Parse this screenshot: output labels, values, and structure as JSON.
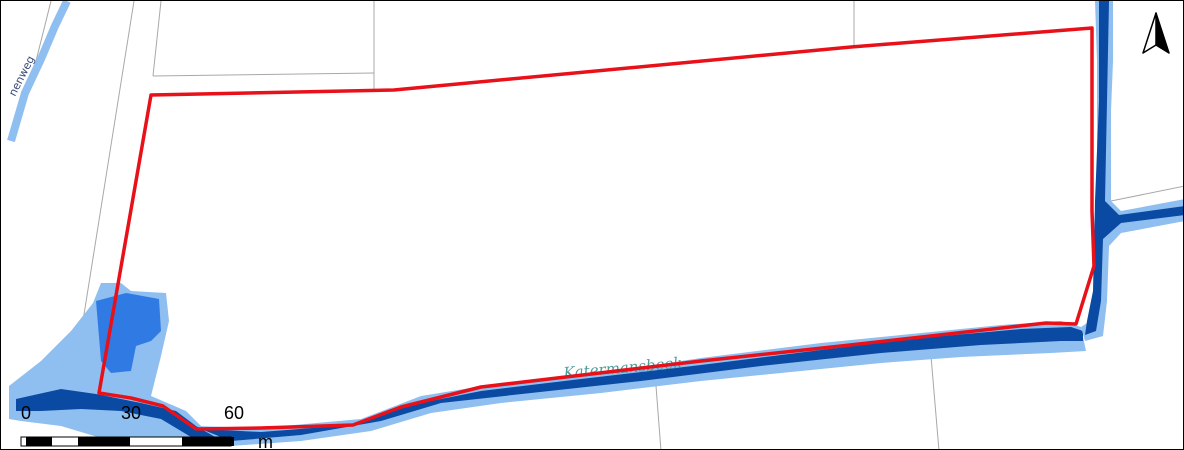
{
  "map": {
    "street_label": "nenweg",
    "water_label": "Katermansbeek",
    "scale_bar": {
      "tick_labels": [
        "0",
        "30",
        "60"
      ],
      "unit": "m"
    },
    "north_arrow": "north-arrow-icon",
    "colors": {
      "parcel_outline": "#e8111a",
      "water_dark": "#0b4aa3",
      "water_medium": "#2f7be3",
      "water_light": "#8fbff0",
      "cadastral_lines": "#a8a8a8",
      "frame": "#000000"
    }
  }
}
